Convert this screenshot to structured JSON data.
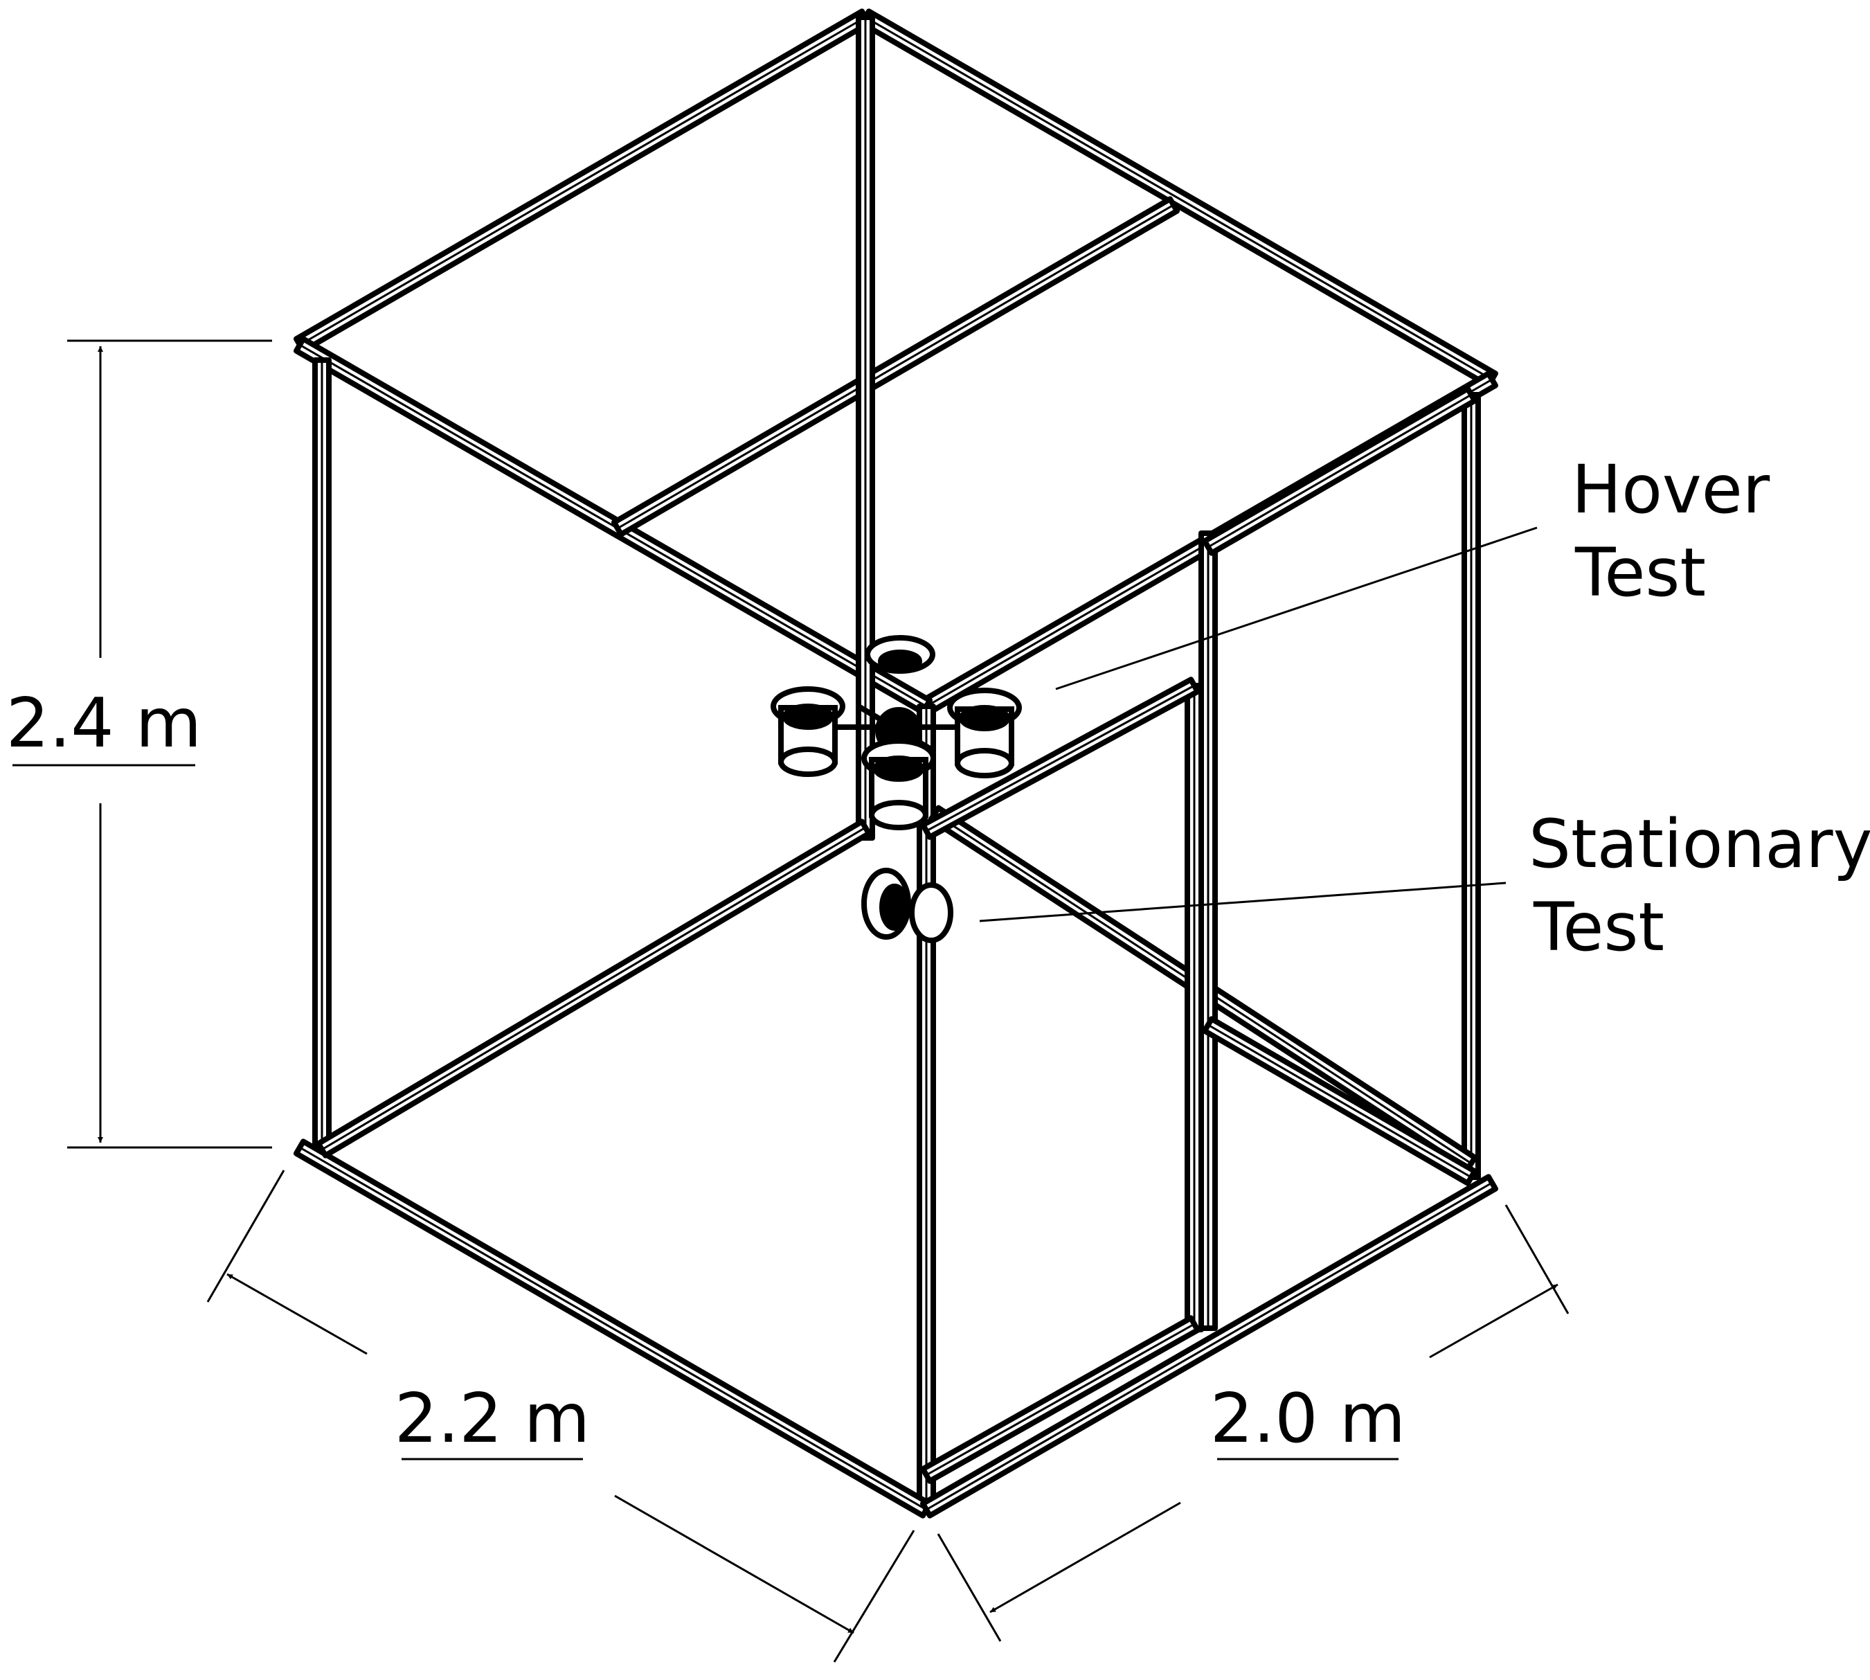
{
  "dimensions": {
    "height": "2.4 m",
    "width": "2.2 m",
    "depth": "2.0 m"
  },
  "labels": {
    "hover": [
      "Hover",
      "Test"
    ],
    "stationary": [
      "Stationary",
      "Test"
    ]
  },
  "colors": {
    "ink": "#000000",
    "background": "#ffffff"
  }
}
